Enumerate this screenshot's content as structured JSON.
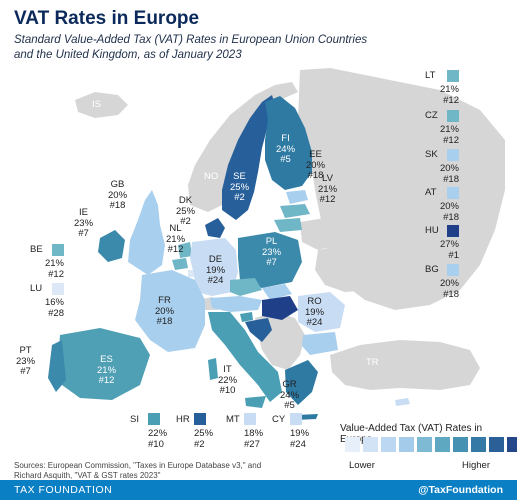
{
  "title": "VAT Rates in Europe",
  "subtitle": "Standard Value-Added Tax (VAT) Rates in European Union Countries and the United Kingdom, as of January 2023",
  "colors": {
    "rate16": "#dde8f6",
    "rate18": "#c8dcf4",
    "rate20": "#a8cfee",
    "rate21": "#6fb6c6",
    "rate22": "#4a9fb4",
    "rate23": "#3b8aab",
    "rate24": "#2f7aa3",
    "rate25": "#275f9a",
    "rate27": "#1f3f88",
    "non_eu": "#d6d6d6",
    "sea": "#ffffff"
  },
  "map_countries": [
    {
      "code": "IS",
      "rate": "",
      "rank": ""
    },
    {
      "code": "NO",
      "rate": "",
      "rank": ""
    },
    {
      "code": "TR",
      "rate": "",
      "rank": ""
    },
    {
      "code": "SE",
      "rate": "25%",
      "rank": "#2"
    },
    {
      "code": "FI",
      "rate": "24%",
      "rank": "#5"
    },
    {
      "code": "EE",
      "rate": "20%",
      "rank": "#18"
    },
    {
      "code": "LV",
      "rate": "21%",
      "rank": "#12"
    },
    {
      "code": "GB",
      "rate": "20%",
      "rank": "#18"
    },
    {
      "code": "DK",
      "rate": "25%",
      "rank": "#2"
    },
    {
      "code": "IE",
      "rate": "23%",
      "rank": "#7"
    },
    {
      "code": "NL",
      "rate": "21%",
      "rank": "#12"
    },
    {
      "code": "DE",
      "rate": "19%",
      "rank": "#24"
    },
    {
      "code": "PL",
      "rate": "23%",
      "rank": "#7"
    },
    {
      "code": "FR",
      "rate": "20%",
      "rank": "#18"
    },
    {
      "code": "RO",
      "rate": "19%",
      "rank": "#24"
    },
    {
      "code": "PT",
      "rate": "23%",
      "rank": "#7"
    },
    {
      "code": "ES",
      "rate": "21%",
      "rank": "#12"
    },
    {
      "code": "IT",
      "rate": "22%",
      "rank": "#10"
    },
    {
      "code": "GR",
      "rate": "24%",
      "rank": "#5"
    }
  ],
  "right_legend": [
    {
      "code": "LT",
      "rate": "21%",
      "rank": "#12",
      "color": "#6fb6c6"
    },
    {
      "code": "CZ",
      "rate": "21%",
      "rank": "#12",
      "color": "#6fb6c6"
    },
    {
      "code": "SK",
      "rate": "20%",
      "rank": "#18",
      "color": "#a8cfee"
    },
    {
      "code": "AT",
      "rate": "20%",
      "rank": "#18",
      "color": "#a8cfee"
    },
    {
      "code": "HU",
      "rate": "27%",
      "rank": "#1",
      "color": "#1f3f88"
    },
    {
      "code": "BG",
      "rate": "20%",
      "rank": "#18",
      "color": "#a8cfee"
    }
  ],
  "left_legend": [
    {
      "code": "BE",
      "rate": "21%",
      "rank": "#12",
      "color": "#6fb6c6"
    },
    {
      "code": "LU",
      "rate": "16%",
      "rank": "#28",
      "color": "#dde8f6"
    }
  ],
  "bottom_legend": [
    {
      "code": "SI",
      "rate": "22%",
      "rank": "#10",
      "color": "#4a9fb4"
    },
    {
      "code": "HR",
      "rate": "25%",
      "rank": "#2",
      "color": "#275f9a"
    },
    {
      "code": "MT",
      "rate": "18%",
      "rank": "#27",
      "color": "#c8dcf4"
    },
    {
      "code": "CY",
      "rate": "19%",
      "rank": "#24",
      "color": "#c8dcf4"
    }
  ],
  "legend": {
    "title": "Value-Added Tax (VAT) Rates in Europe",
    "low": "Lower",
    "high": "Higher",
    "scale_colors": [
      "#e6effa",
      "#d2e3f6",
      "#bcd7f1",
      "#a4cbea",
      "#7fbad5",
      "#5ea8c2",
      "#4592b3",
      "#3579a6",
      "#2b5f98",
      "#23478a"
    ]
  },
  "sources": "Sources: European Commission, \"Taxes in Europe Database v3,\" and Richard Asquith, \"VAT & GST rates 2023\"",
  "footer": {
    "org": "TAX FOUNDATION",
    "handle": "@TaxFoundation"
  }
}
